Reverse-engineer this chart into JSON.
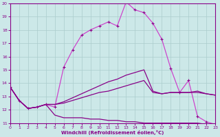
{
  "xlabel": "Windchill (Refroidissement éolien,°C)",
  "xlim": [
    0,
    23
  ],
  "ylim": [
    11,
    20
  ],
  "yticks": [
    11,
    12,
    13,
    14,
    15,
    16,
    17,
    18,
    19,
    20
  ],
  "xticks": [
    0,
    1,
    2,
    3,
    4,
    5,
    6,
    7,
    8,
    9,
    10,
    11,
    12,
    13,
    14,
    15,
    16,
    17,
    18,
    19,
    20,
    21,
    22,
    23
  ],
  "bg_color": "#cce8e8",
  "line_color_dark": "#880088",
  "line_color_bright": "#cc44cc",
  "grid_color": "#aacccc",
  "curve1_x": [
    0,
    1,
    2,
    3,
    4,
    5,
    6,
    7,
    8,
    9,
    10,
    11,
    12,
    13,
    14,
    15,
    16,
    17,
    18,
    19,
    20,
    21,
    22,
    23
  ],
  "curve1_y": [
    13.7,
    12.7,
    12.1,
    12.2,
    12.4,
    12.2,
    15.2,
    16.5,
    17.6,
    18.0,
    18.3,
    18.6,
    18.3,
    20.1,
    19.5,
    19.3,
    18.5,
    17.3,
    15.1,
    13.3,
    14.2,
    11.5,
    11.1,
    10.9
  ],
  "curve2_x": [
    0,
    1,
    2,
    3,
    4,
    5,
    6,
    7,
    8,
    9,
    10,
    11,
    12,
    13,
    14,
    15,
    16,
    17,
    18,
    19,
    20,
    21,
    22,
    23
  ],
  "curve2_y": [
    13.7,
    12.7,
    12.1,
    12.2,
    12.4,
    11.6,
    11.4,
    11.4,
    11.4,
    11.3,
    11.3,
    11.2,
    11.2,
    11.1,
    11.1,
    11.0,
    11.0,
    11.0,
    11.0,
    11.0,
    11.0,
    11.0,
    10.9,
    10.9
  ],
  "curve3_x": [
    0,
    1,
    2,
    3,
    4,
    5,
    6,
    7,
    8,
    9,
    10,
    11,
    12,
    13,
    14,
    15,
    16,
    17,
    18,
    19,
    20,
    21,
    22,
    23
  ],
  "curve3_y": [
    13.7,
    12.7,
    12.1,
    12.2,
    12.4,
    12.4,
    12.5,
    12.7,
    12.9,
    13.1,
    13.3,
    13.4,
    13.6,
    13.8,
    14.0,
    14.2,
    13.3,
    13.2,
    13.3,
    13.3,
    13.3,
    13.3,
    13.2,
    13.1
  ],
  "curve4_x": [
    0,
    1,
    2,
    3,
    4,
    5,
    6,
    7,
    8,
    9,
    10,
    11,
    12,
    13,
    14,
    15,
    16,
    17,
    18,
    19,
    20,
    21,
    22,
    23
  ],
  "curve4_y": [
    13.7,
    12.7,
    12.1,
    12.2,
    12.4,
    12.4,
    12.6,
    12.9,
    13.2,
    13.5,
    13.8,
    14.1,
    14.3,
    14.6,
    14.8,
    15.0,
    13.4,
    13.2,
    13.3,
    13.3,
    13.3,
    13.4,
    13.2,
    13.1
  ]
}
